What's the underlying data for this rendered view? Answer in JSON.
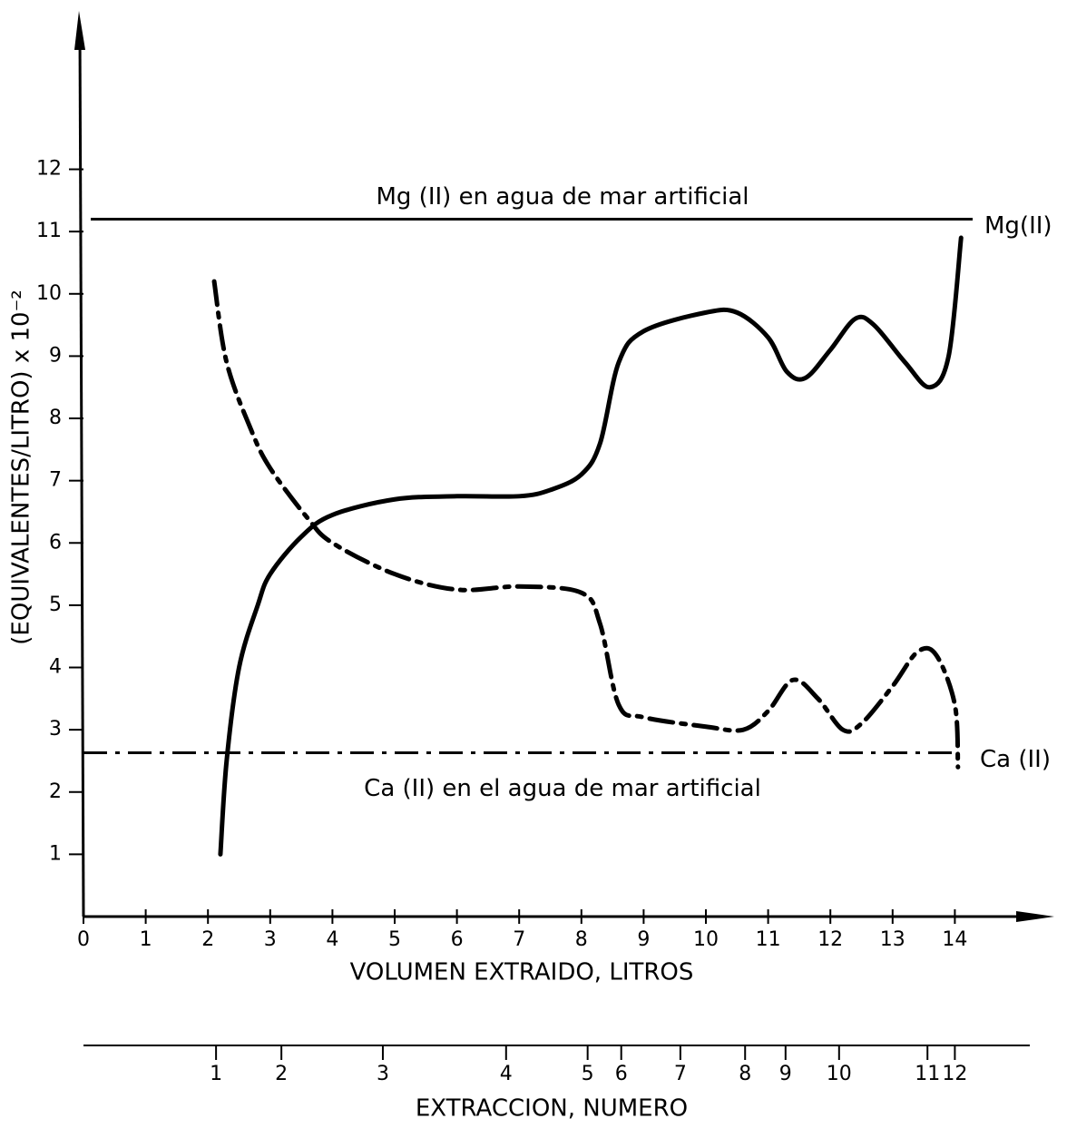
{
  "chart_data": {
    "type": "line",
    "xlabel": "VOLUMEN EXTRAIDO, LITROS",
    "ylabel": "(EQUIVALENTES/LITRO) x 10⁻²",
    "xlim": [
      0,
      14
    ],
    "ylim": [
      0,
      14.5
    ],
    "xticks": [
      0,
      1,
      2,
      3,
      4,
      5,
      6,
      7,
      8,
      9,
      10,
      11,
      12,
      13,
      14
    ],
    "yticks": [
      1,
      2,
      3,
      4,
      5,
      6,
      7,
      8,
      9,
      10,
      11,
      12
    ],
    "series": [
      {
        "name": "Mg(II)",
        "color": "#000",
        "style": "solid",
        "x": [
          2.2,
          2.3,
          2.5,
          2.8,
          3.0,
          3.5,
          4,
          5,
          6,
          7,
          7.5,
          8,
          8.3,
          8.6,
          9,
          10,
          10.5,
          11,
          11.3,
          11.6,
          12,
          12.4,
          12.7,
          13.2,
          13.6,
          13.9,
          14.1
        ],
        "values": [
          1.0,
          2.5,
          4.0,
          5.0,
          5.5,
          6.1,
          6.45,
          6.7,
          6.75,
          6.75,
          6.85,
          7.1,
          7.6,
          8.9,
          9.4,
          9.7,
          9.7,
          9.3,
          8.75,
          8.65,
          9.1,
          9.6,
          9.5,
          8.9,
          8.5,
          9.0,
          10.9
        ]
      },
      {
        "name": "Ca (II)",
        "color": "#000",
        "style": "dashdot",
        "x": [
          2.1,
          2.3,
          2.7,
          3.0,
          3.6,
          4,
          5,
          6,
          7,
          8,
          8.3,
          8.6,
          9,
          10,
          10.6,
          11,
          11.4,
          11.8,
          12.2,
          12.5,
          13,
          13.4,
          13.7,
          14,
          14.05
        ],
        "values": [
          10.2,
          8.9,
          7.8,
          7.2,
          6.4,
          6.0,
          5.5,
          5.25,
          5.3,
          5.2,
          4.7,
          3.4,
          3.2,
          3.05,
          3.0,
          3.3,
          3.8,
          3.5,
          3.0,
          3.1,
          3.7,
          4.25,
          4.2,
          3.4,
          2.4
        ]
      }
    ],
    "reference_lines": [
      {
        "value": 11.2,
        "label": "Mg (II) en agua de mar artificial",
        "end_label": "Mg(II)",
        "style": "solid"
      },
      {
        "value": 2.63,
        "label": "Ca (II) en el agua de mar artificial",
        "end_label": "Ca (II)",
        "style": "dashdot"
      }
    ],
    "extraction_axis": {
      "label": "EXTRACCION, NUMERO",
      "numbers": [
        1,
        2,
        3,
        4,
        5,
        6,
        7,
        8,
        9,
        10,
        11,
        12
      ],
      "positions": [
        2.13,
        3.18,
        4.81,
        6.79,
        8.1,
        8.64,
        9.59,
        10.63,
        11.28,
        12.14,
        13.56,
        14.0
      ]
    }
  }
}
